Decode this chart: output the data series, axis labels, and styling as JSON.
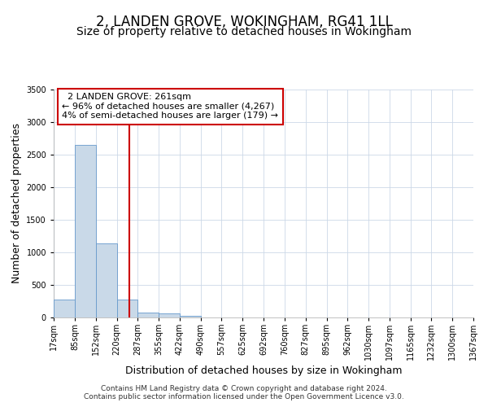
{
  "title": "2, LANDEN GROVE, WOKINGHAM, RG41 1LL",
  "subtitle": "Size of property relative to detached houses in Wokingham",
  "xlabel": "Distribution of detached houses by size in Wokingham",
  "ylabel": "Number of detached properties",
  "property_size": 261,
  "annotation_line1": "2 LANDEN GROVE: 261sqm",
  "annotation_line2": "← 96% of detached houses are smaller (4,267)",
  "annotation_line3": "4% of semi-detached houses are larger (179) →",
  "footer_line1": "Contains HM Land Registry data © Crown copyright and database right 2024.",
  "footer_line2": "Contains public sector information licensed under the Open Government Licence v3.0.",
  "bar_color": "#c9d9e8",
  "bar_edge_color": "#6699cc",
  "vline_color": "#cc0000",
  "annotation_box_edge": "#cc0000",
  "grid_color": "#ccd8e8",
  "bin_edges": [
    17,
    85,
    152,
    220,
    287,
    355,
    422,
    490,
    557,
    625,
    692,
    760,
    827,
    895,
    962,
    1030,
    1097,
    1165,
    1232,
    1300,
    1367
  ],
  "bar_heights": [
    270,
    2650,
    1140,
    270,
    80,
    60,
    30,
    0,
    0,
    0,
    0,
    0,
    0,
    0,
    0,
    0,
    0,
    0,
    0,
    0
  ],
  "ylim": [
    0,
    3500
  ],
  "yticks": [
    0,
    500,
    1000,
    1500,
    2000,
    2500,
    3000,
    3500
  ],
  "title_fontsize": 12,
  "subtitle_fontsize": 10,
  "axis_label_fontsize": 9,
  "tick_fontsize": 7,
  "annotation_fontsize": 8,
  "footer_fontsize": 6.5
}
